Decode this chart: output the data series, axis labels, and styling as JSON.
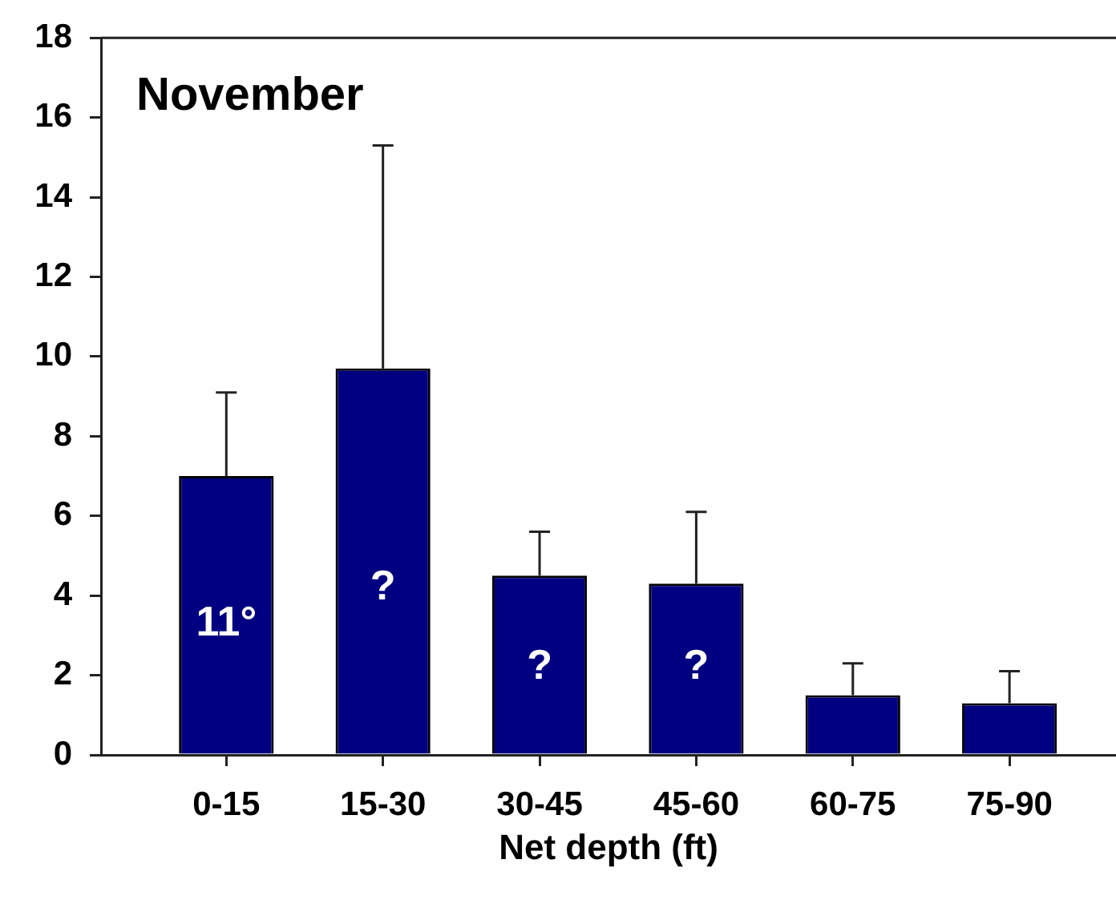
{
  "chart_data": {
    "type": "bar",
    "title": "November",
    "xlabel": "Net depth (ft)",
    "categories": [
      "0-15",
      "15-30",
      "30-45",
      "45-60",
      "60-75",
      "75-90"
    ],
    "values": [
      7.0,
      9.7,
      4.5,
      4.3,
      1.5,
      1.3
    ],
    "color": "#000080",
    "errors": [
      [
        7.0,
        9.1
      ],
      [
        9.7,
        15.3
      ],
      [
        4.5,
        5.6
      ],
      [
        4.3,
        6.1
      ],
      [
        1.5,
        2.3
      ],
      [
        1.3,
        2.1
      ]
    ],
    "ylim": [
      0,
      18
    ],
    "yticks": [
      0,
      2,
      4,
      6,
      8,
      10,
      12,
      14,
      16,
      18
    ],
    "grid": false,
    "legend": false,
    "annotations": [
      "11°",
      "?",
      "?",
      "?"
    ]
  }
}
